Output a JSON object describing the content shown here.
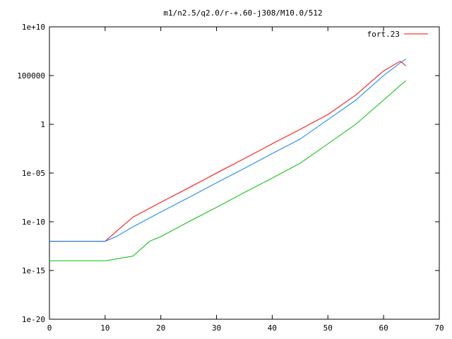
{
  "chart_data": {
    "type": "line",
    "title": "m1/n2.5/q2.0/r-+.60-j308/M10.0/512",
    "xlabel": "",
    "ylabel": "",
    "xlim": [
      0,
      70
    ],
    "ylim": [
      1e-20,
      10000000000.0
    ],
    "y_scale": "log",
    "grid": false,
    "legend_position": "top-right",
    "x_ticks": [
      0,
      10,
      20,
      30,
      40,
      50,
      60,
      70
    ],
    "x_tick_labels": [
      "0",
      "10",
      "20",
      "30",
      "40",
      "50",
      "60",
      "70"
    ],
    "y_ticks": [
      1e-20,
      1e-15,
      1e-10,
      1e-05,
      1,
      100000,
      10000000000.0
    ],
    "y_tick_labels": [
      "1e-20",
      "1e-15",
      "1e-10",
      "1e-05",
      "1",
      "100000",
      "1e+10"
    ],
    "series": [
      {
        "name": "fort.23",
        "color": "#ff0000",
        "x": [
          0,
          5,
          10,
          12,
          15,
          20,
          25,
          30,
          35,
          40,
          45,
          50,
          55,
          60,
          63,
          64
        ],
        "y": [
          1e-12,
          1e-12,
          1e-12,
          1e-11,
          3e-10,
          1e-08,
          3e-07,
          1e-05,
          0.0003,
          0.01,
          0.3,
          10,
          1000,
          300000,
          3000000,
          1000000
        ]
      },
      {
        "name": "",
        "color": "#0080ff",
        "x": [
          0,
          5,
          10,
          12,
          15,
          20,
          25,
          30,
          35,
          40,
          45,
          50,
          55,
          60,
          63,
          64
        ],
        "y": [
          1e-12,
          1e-12,
          1e-12,
          3e-12,
          3e-11,
          1e-09,
          3e-08,
          1e-06,
          3e-05,
          0.001,
          0.03,
          3,
          300,
          100000,
          2000000,
          5000000
        ]
      },
      {
        "name": "",
        "color": "#00c000",
        "x": [
          0,
          5,
          10,
          15,
          18,
          20,
          25,
          30,
          35,
          40,
          45,
          50,
          55,
          60,
          63,
          64
        ],
        "y": [
          1e-14,
          1e-14,
          1e-14,
          3e-14,
          1e-12,
          3e-12,
          1e-10,
          3e-09,
          1e-07,
          3e-06,
          0.0001,
          0.01,
          1,
          300,
          10000,
          30000
        ]
      }
    ]
  }
}
